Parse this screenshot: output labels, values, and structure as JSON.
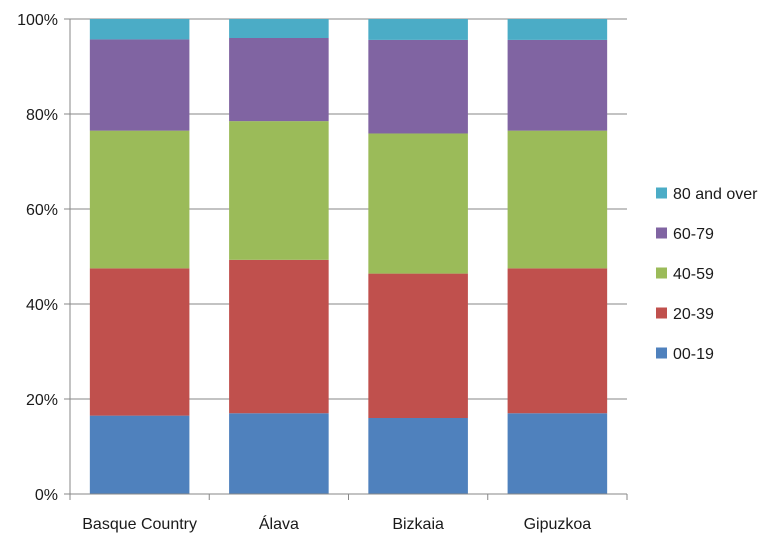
{
  "chart_data": {
    "type": "bar",
    "stacked": true,
    "percent": true,
    "title": "",
    "xlabel": "",
    "ylabel": "",
    "ylim": [
      0,
      100
    ],
    "yticks": [
      "0%",
      "20%",
      "40%",
      "60%",
      "80%",
      "100%"
    ],
    "grid": true,
    "legend_position": "right",
    "categories": [
      "Basque Country",
      "Álava",
      "Bizkaia",
      "Gipuzkoa"
    ],
    "series": [
      {
        "name": "00-19",
        "color": "#4f81bd",
        "values": [
          16.5,
          17.0,
          16.0,
          17.0
        ]
      },
      {
        "name": "20-39",
        "color": "#c0504d",
        "values": [
          31.0,
          32.3,
          30.4,
          30.5
        ]
      },
      {
        "name": "40-59",
        "color": "#9bbb59",
        "values": [
          29.0,
          29.2,
          29.5,
          29.0
        ]
      },
      {
        "name": "60-79",
        "color": "#8064a2",
        "values": [
          19.2,
          17.5,
          19.7,
          19.1
        ]
      },
      {
        "name": "80 and over",
        "color": "#4bacc6",
        "values": [
          4.3,
          4.0,
          4.4,
          4.4
        ]
      }
    ]
  }
}
